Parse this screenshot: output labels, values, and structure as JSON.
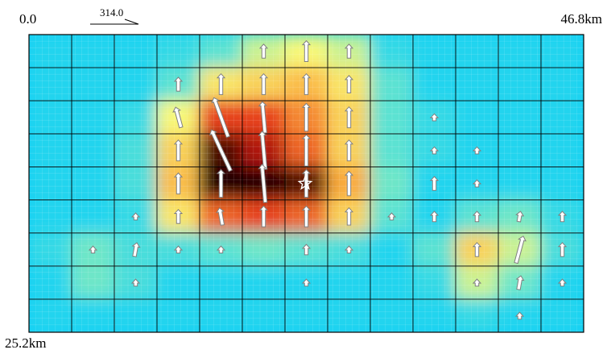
{
  "labels": {
    "top_left": "0.0",
    "top_right": "46.8km",
    "bottom_left": "25.2km",
    "strike": "314.0"
  },
  "chart_data": {
    "type": "heatmap",
    "grid": {
      "columns": 13,
      "rows": 9
    },
    "x_range_km": [
      0,
      46.8
    ],
    "y_range_km": [
      0,
      25.2
    ],
    "hypocenter": {
      "x": 23.3,
      "y": 12.6
    },
    "colors": {
      "low": "#0fd0f8",
      "mid": "#f8f878",
      "high": "#e02010",
      "peak": "#200000",
      "arrow": "#808080"
    },
    "slip_grid": [
      [
        0.05,
        0.05,
        0.05,
        0.1,
        0.2,
        0.35,
        0.4,
        0.35,
        0.1,
        0.05,
        0.05,
        0.05,
        0.05
      ],
      [
        0.05,
        0.05,
        0.05,
        0.2,
        0.45,
        0.5,
        0.55,
        0.45,
        0.2,
        0.05,
        0.05,
        0.05,
        0.05
      ],
      [
        0.05,
        0.05,
        0.1,
        0.4,
        0.75,
        0.75,
        0.65,
        0.5,
        0.2,
        0.1,
        0.05,
        0.05,
        0.05
      ],
      [
        0.05,
        0.05,
        0.15,
        0.5,
        0.95,
        0.85,
        0.7,
        0.5,
        0.2,
        0.1,
        0.05,
        0.05,
        0.05
      ],
      [
        0.05,
        0.05,
        0.15,
        0.55,
        1.0,
        1.0,
        0.95,
        0.6,
        0.25,
        0.05,
        0.05,
        0.05,
        0.05
      ],
      [
        0.05,
        0.05,
        0.1,
        0.45,
        0.7,
        0.75,
        0.7,
        0.5,
        0.2,
        0.05,
        0.2,
        0.25,
        0.1
      ],
      [
        0.1,
        0.25,
        0.15,
        0.15,
        0.2,
        0.25,
        0.2,
        0.15,
        0.05,
        0.2,
        0.5,
        0.35,
        0.15
      ],
      [
        0.05,
        0.25,
        0.15,
        0.05,
        0.05,
        0.05,
        0.05,
        0.05,
        0.05,
        0.1,
        0.35,
        0.25,
        0.05
      ],
      [
        0.05,
        0.05,
        0.05,
        0.05,
        0.05,
        0.05,
        0.05,
        0.05,
        0.05,
        0.05,
        0.1,
        0.05,
        0.05
      ]
    ],
    "slip_vectors": [
      {
        "col": 5,
        "row": 0,
        "len": 0.4,
        "rake": 0
      },
      {
        "col": 6,
        "row": 0,
        "len": 0.6,
        "rake": 0
      },
      {
        "col": 7,
        "row": 0,
        "len": 0.4,
        "rake": 0
      },
      {
        "col": 3,
        "row": 1,
        "len": 0.4,
        "rake": 0
      },
      {
        "col": 4,
        "row": 1,
        "len": 0.6,
        "rake": 0
      },
      {
        "col": 5,
        "row": 1,
        "len": 0.6,
        "rake": 0
      },
      {
        "col": 6,
        "row": 1,
        "len": 0.6,
        "rake": 0
      },
      {
        "col": 7,
        "row": 1,
        "len": 0.5,
        "rake": 0
      },
      {
        "col": 3,
        "row": 2,
        "len": 0.6,
        "rake": -15
      },
      {
        "col": 4,
        "row": 2,
        "len": 1.2,
        "rake": -20
      },
      {
        "col": 5,
        "row": 2,
        "len": 0.9,
        "rake": -5
      },
      {
        "col": 6,
        "row": 2,
        "len": 0.8,
        "rake": 0
      },
      {
        "col": 7,
        "row": 2,
        "len": 0.6,
        "rake": 0
      },
      {
        "col": 9,
        "row": 2,
        "len": 0.2,
        "rake": 0
      },
      {
        "col": 3,
        "row": 3,
        "len": 0.6,
        "rake": 0
      },
      {
        "col": 4,
        "row": 3,
        "len": 1.3,
        "rake": -25
      },
      {
        "col": 5,
        "row": 3,
        "len": 1.1,
        "rake": -5
      },
      {
        "col": 6,
        "row": 3,
        "len": 0.9,
        "rake": 0
      },
      {
        "col": 7,
        "row": 3,
        "len": 0.6,
        "rake": 0
      },
      {
        "col": 9,
        "row": 3,
        "len": 0.2,
        "rake": 0
      },
      {
        "col": 10,
        "row": 3,
        "len": 0.2,
        "rake": 0
      },
      {
        "col": 3,
        "row": 4,
        "len": 0.6,
        "rake": 0
      },
      {
        "col": 4,
        "row": 4,
        "len": 0.8,
        "rake": 0
      },
      {
        "col": 5,
        "row": 4,
        "len": 1.1,
        "rake": -5
      },
      {
        "col": 6,
        "row": 4,
        "len": 0.8,
        "rake": 0
      },
      {
        "col": 7,
        "row": 4,
        "len": 0.7,
        "rake": 0
      },
      {
        "col": 9,
        "row": 4,
        "len": 0.4,
        "rake": 0
      },
      {
        "col": 10,
        "row": 4,
        "len": 0.2,
        "rake": 0
      },
      {
        "col": 2,
        "row": 5,
        "len": 0.2,
        "rake": 0
      },
      {
        "col": 3,
        "row": 5,
        "len": 0.4,
        "rake": 0
      },
      {
        "col": 4,
        "row": 5,
        "len": 0.5,
        "rake": -10
      },
      {
        "col": 5,
        "row": 5,
        "len": 0.6,
        "rake": 0
      },
      {
        "col": 6,
        "row": 5,
        "len": 0.6,
        "rake": 0
      },
      {
        "col": 7,
        "row": 5,
        "len": 0.5,
        "rake": 0
      },
      {
        "col": 8,
        "row": 5,
        "len": 0.2,
        "rake": 0
      },
      {
        "col": 9,
        "row": 5,
        "len": 0.3,
        "rake": 0
      },
      {
        "col": 10,
        "row": 5,
        "len": 0.3,
        "rake": 0
      },
      {
        "col": 11,
        "row": 5,
        "len": 0.3,
        "rake": 10
      },
      {
        "col": 12,
        "row": 5,
        "len": 0.3,
        "rake": 0
      },
      {
        "col": 1,
        "row": 6,
        "len": 0.2,
        "rake": 0
      },
      {
        "col": 2,
        "row": 6,
        "len": 0.4,
        "rake": 10
      },
      {
        "col": 3,
        "row": 6,
        "len": 0.2,
        "rake": 0
      },
      {
        "col": 4,
        "row": 6,
        "len": 0.2,
        "rake": 0
      },
      {
        "col": 6,
        "row": 6,
        "len": 0.3,
        "rake": 0
      },
      {
        "col": 7,
        "row": 6,
        "len": 0.2,
        "rake": 0
      },
      {
        "col": 10,
        "row": 6,
        "len": 0.4,
        "rake": 0
      },
      {
        "col": 11,
        "row": 6,
        "len": 0.8,
        "rake": 15
      },
      {
        "col": 12,
        "row": 6,
        "len": 0.4,
        "rake": 0
      },
      {
        "col": 2,
        "row": 7,
        "len": 0.2,
        "rake": 0
      },
      {
        "col": 6,
        "row": 7,
        "len": 0.2,
        "rake": 0
      },
      {
        "col": 10,
        "row": 7,
        "len": 0.2,
        "rake": 0
      },
      {
        "col": 11,
        "row": 7,
        "len": 0.4,
        "rake": 10
      },
      {
        "col": 12,
        "row": 7,
        "len": 0.2,
        "rake": 0
      },
      {
        "col": 11,
        "row": 8,
        "len": 0.2,
        "rake": 0
      }
    ]
  }
}
